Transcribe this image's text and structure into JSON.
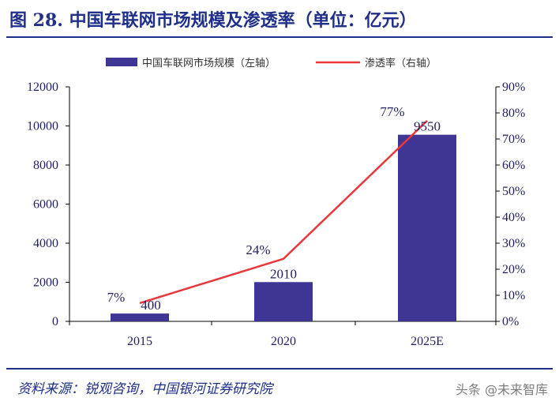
{
  "figure": {
    "title": "图 28. 中国车联网市场规模及渗透率（单位：亿元）",
    "source": "资料来源：锐观咨询，中国银河证券研究院",
    "watermark": "头条 @未来智库"
  },
  "colors": {
    "bar": "#3f3594",
    "line": "#e8383d",
    "text": "#1f2f8a",
    "axis": "#000000"
  },
  "chart_data": {
    "type": "bar",
    "categories": [
      "2015",
      "2020",
      "2025E"
    ],
    "series": [
      {
        "name": "中国车联网市场规模（左轴）",
        "type": "bar",
        "axis": "left",
        "values": [
          400,
          2010,
          9550
        ],
        "labels": [
          "400",
          "2010",
          "9550"
        ]
      },
      {
        "name": "渗透率（右轴）",
        "type": "line",
        "axis": "right",
        "values": [
          7,
          24,
          77
        ],
        "labels": [
          "7%",
          "24%",
          "77%"
        ]
      }
    ],
    "y_left": {
      "min": 0,
      "max": 12000,
      "ticks": [
        0,
        2000,
        4000,
        6000,
        8000,
        10000,
        12000
      ]
    },
    "y_right": {
      "min": 0,
      "max": 90,
      "ticks": [
        0,
        10,
        20,
        30,
        40,
        50,
        60,
        70,
        80,
        90
      ],
      "suffix": "%"
    },
    "legend_position": "top-center",
    "grid": false
  }
}
